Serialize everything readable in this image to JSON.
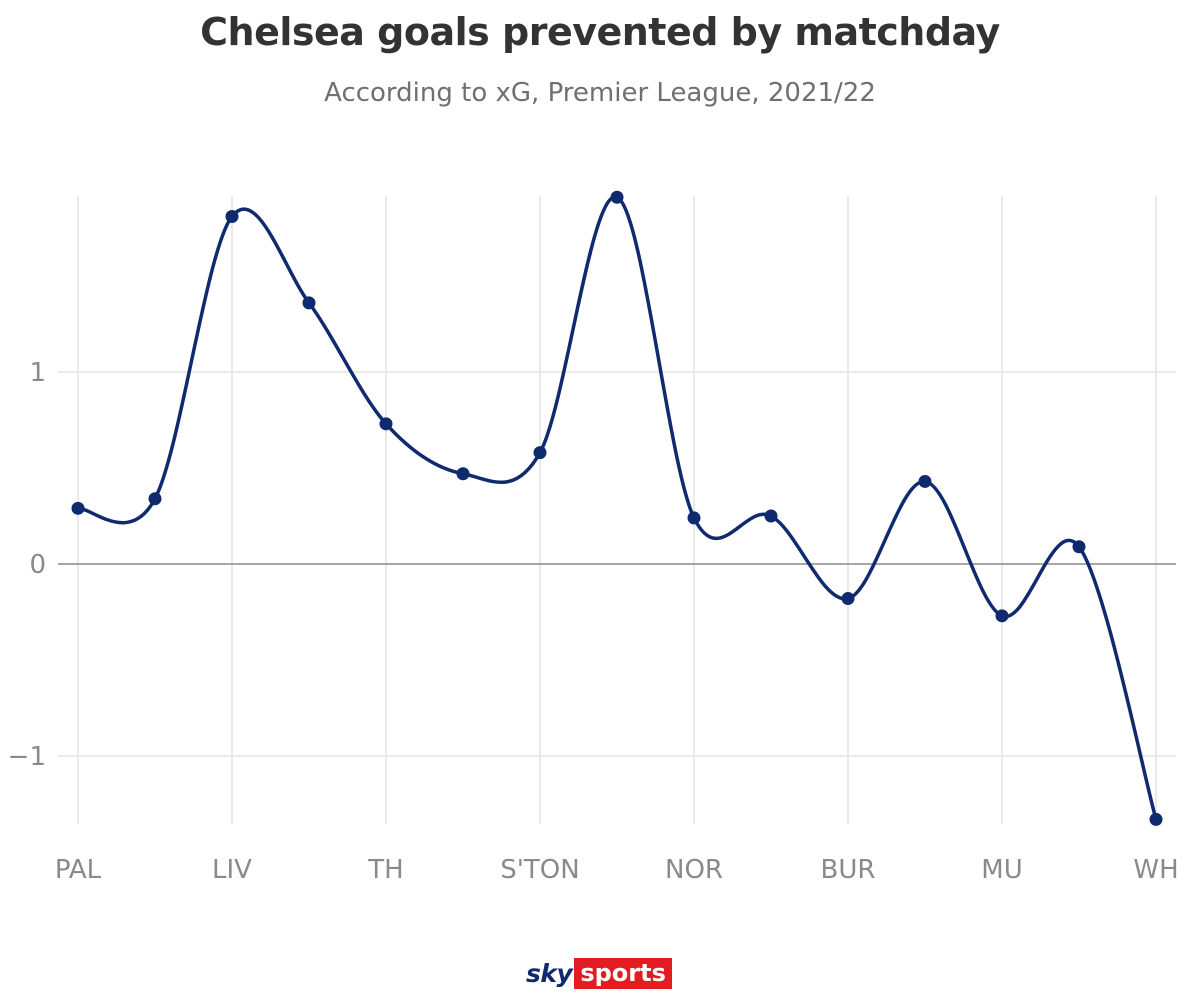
{
  "chart_data": {
    "type": "line",
    "title": "Chelsea goals prevented by matchday",
    "subtitle": "According to xG, Premier League, 2021/22",
    "x": [
      0,
      1,
      2,
      3,
      4,
      5,
      6,
      7,
      8,
      9,
      10,
      11,
      12,
      13,
      14
    ],
    "x_tick_labels": [
      "PAL",
      "LIV",
      "TH",
      "S'TON",
      "NOR",
      "BUR",
      "MU",
      "WH"
    ],
    "x_tick_positions": [
      0,
      2,
      4,
      6,
      8,
      10,
      12,
      14
    ],
    "series": [
      {
        "values": [
          0.29,
          0.34,
          1.81,
          1.36,
          0.73,
          0.47,
          0.58,
          1.91,
          0.24,
          0.25,
          -0.18,
          0.43,
          -0.27,
          0.09,
          -1.33
        ]
      }
    ],
    "y_ticks": [
      -1,
      0,
      1
    ],
    "y_tick_labels": [
      "−1",
      "0",
      "1"
    ],
    "xlim": [
      0,
      14
    ],
    "ylim": [
      -1.4,
      1.95
    ],
    "grid": true,
    "line_color": "#0f2a6e",
    "grid_color": "#e3e3e3",
    "zero_line_color": "#8a8a8a"
  },
  "branding": {
    "logo_sky": "sky",
    "logo_sports": "sports"
  }
}
